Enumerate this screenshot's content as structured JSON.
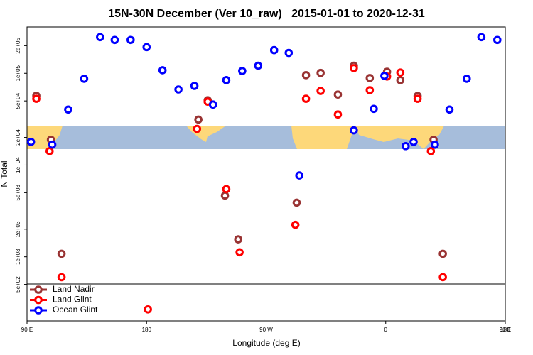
{
  "chart_data": {
    "type": "scatter",
    "title": "15N-30N December (Ver 10_raw)   2015-01-01 to 2020-12-31",
    "x_label": "Longitude (deg E)",
    "y_label": "N Total",
    "xlim": [
      90,
      450
    ],
    "xticks": [
      {
        "value": 90,
        "label": "90 E"
      },
      180,
      {
        "value": 270,
        "label": "90 W"
      },
      {
        "value": 360,
        "label": "0"
      },
      {
        "value": 450,
        "label": "90 E"
      },
      {
        "value": 540,
        "label": "180"
      }
    ],
    "ylim": [
      200,
      320000
    ],
    "log_y": true,
    "yticks": [
      {
        "value": 500,
        "label": "5e+02"
      },
      {
        "value": 1000,
        "label": "1e+03"
      },
      {
        "value": 2000,
        "label": "2e+03"
      },
      {
        "value": 5000,
        "label": "5e+03"
      },
      {
        "value": 10000,
        "label": "1e+04"
      },
      {
        "value": 20000,
        "label": "2e+04"
      },
      {
        "value": 50000,
        "label": "5e+04"
      },
      {
        "value": 100000,
        "label": "1e+05"
      },
      {
        "value": 200000,
        "label": "2e+05"
      }
    ],
    "legend": "lower left",
    "series": [
      {
        "name": "Land Nadir",
        "color": "#993333",
        "x": [
          97,
          108,
          116,
          219,
          226,
          239,
          249,
          293,
          300,
          311,
          324,
          336,
          348,
          361,
          371,
          384,
          396,
          403
        ],
        "values": [
          57000,
          18900,
          1080,
          31300,
          50900,
          4650,
          1550,
          3890,
          95500,
          101000,
          58700,
          121000,
          88900,
          104000,
          84300,
          56700,
          18900,
          1080
        ]
      },
      {
        "name": "Land Glint",
        "color": "#ff0000",
        "x": [
          97,
          107,
          116,
          181,
          218,
          226,
          240,
          250,
          292,
          300,
          311,
          324,
          336,
          348,
          361,
          371,
          384,
          394,
          403
        ],
        "values": [
          52800,
          14200,
          599,
          267,
          24800,
          49100,
          5470,
          1120,
          2230,
          52800,
          64300,
          35600,
          114000,
          65500,
          92300,
          102000,
          52800,
          14200,
          599
        ]
      },
      {
        "name": "Ocean Glint",
        "color": "#0000ff",
        "x": [
          93,
          109,
          121,
          133,
          145,
          156,
          168,
          180,
          192,
          204,
          216,
          230,
          240,
          252,
          264,
          276,
          287,
          295,
          336,
          351,
          359,
          375,
          381,
          397,
          408,
          421,
          432,
          444
        ],
        "values": [
          17900,
          16700,
          40300,
          87300,
          248000,
          231000,
          231000,
          193000,
          108000,
          66700,
          72900,
          45700,
          84300,
          106000,
          121000,
          179000,
          167000,
          7710,
          23900,
          41000,
          94000,
          16100,
          17900,
          16700,
          40300,
          87300,
          248000,
          231000
        ]
      }
    ]
  }
}
